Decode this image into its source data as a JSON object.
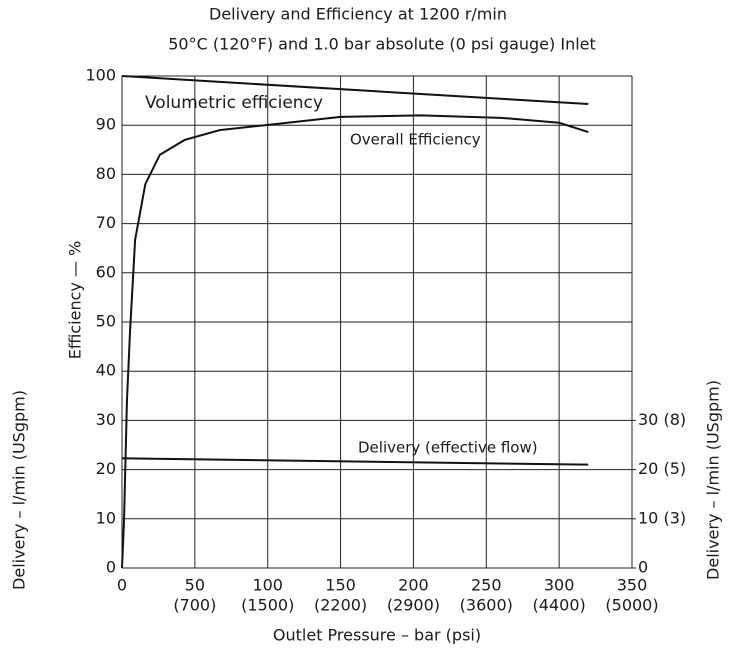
{
  "chart_data": {
    "type": "line",
    "title": "Delivery and Efficiency at 1200 r/min",
    "subtitle": "50°C (120°F) and 1.0 bar absolute (0 psi gauge) Inlet",
    "xlabel": "Outlet Pressure – bar (psi)",
    "ylabel": "Efficiency — %",
    "y2label": "Delivery – l/min (USgpm)",
    "left_label": "Delivery – l/min (USgpm)",
    "xlim": [
      0,
      350
    ],
    "xticks": [
      0,
      50,
      100,
      150,
      200,
      250,
      300,
      350
    ],
    "xtick_sublabels": [
      "(700)",
      "(1500)",
      "(2200)",
      "(2900)",
      "(3600)",
      "(4400)",
      "(5000)"
    ],
    "ylim": [
      0,
      100
    ],
    "yticks": [
      0,
      10,
      20,
      30,
      40,
      50,
      60,
      70,
      80,
      90,
      100
    ],
    "y2lim": [
      0,
      100
    ],
    "y2ticks": [
      0,
      {
        "value": 10,
        "label": "10 (3)"
      },
      {
        "value": 20,
        "label": "20 (5)"
      },
      {
        "value": 30,
        "label": "30 (8)"
      }
    ],
    "grid": true,
    "series": [
      {
        "name": "Volumetric efficiency",
        "color": "#111111",
        "x": [
          0,
          320
        ],
        "values": [
          100,
          94.3
        ]
      },
      {
        "name": "Overall Efficiency",
        "color": "#111111",
        "x": [
          0,
          1.4,
          3.4,
          5.5,
          9,
          16,
          26,
          43,
          67,
          98,
          150,
          205,
          260,
          300,
          320
        ],
        "values": [
          0,
          9.8,
          34,
          48,
          66.7,
          78,
          84,
          87,
          89,
          90,
          91.7,
          92,
          91.5,
          90.5,
          88.6
        ]
      },
      {
        "name": "Delivery (effective flow)",
        "color": "#111111",
        "axis": "y2",
        "x": [
          0,
          320
        ],
        "values": [
          22.3,
          21
        ]
      }
    ]
  }
}
